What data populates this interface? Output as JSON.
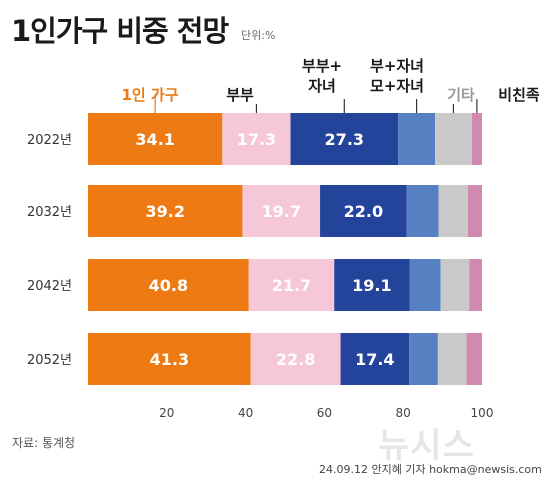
{
  "title": "1인가구 비중 전망",
  "unit": "단위:%",
  "source": "자료: 통계청",
  "watermark": "뉴시스",
  "credit": "24.09.12 안지혜 기자 hokma@newsis.com",
  "colors": {
    "one_person": "#EE7A14",
    "couple": "#F5C7D8",
    "couple_children": "#23449A",
    "parent_children": "#5680C2",
    "other": "#C9C9C9",
    "non_family": "#D289B1"
  },
  "category_labels": [
    {
      "key": "one_person",
      "text": "1인 가구",
      "lines": [
        "1인 가구"
      ],
      "color": "#EE7A14"
    },
    {
      "key": "couple",
      "text": "부부",
      "lines": [
        "부부"
      ],
      "color": "#1a1a1a"
    },
    {
      "key": "couple_children",
      "text": "부부+ 자녀",
      "lines": [
        "부부+",
        "자녀"
      ],
      "color": "#1a1a1a"
    },
    {
      "key": "parent_children",
      "text": "부+자녀 모+자녀",
      "lines": [
        "부+자녀",
        "모+자녀"
      ],
      "color": "#1a1a1a"
    },
    {
      "key": "other",
      "text": "기타",
      "lines": [
        "기타"
      ],
      "color": "#9a9a9a"
    },
    {
      "key": "non_family",
      "text": "비친족",
      "lines": [
        "비친족"
      ],
      "color": "#1a1a1a"
    }
  ],
  "chart_data": {
    "type": "bar",
    "orientation": "horizontal",
    "stacked": true,
    "categories": [
      "2022년",
      "2032년",
      "2042년",
      "2052년"
    ],
    "series": [
      {
        "name": "1인 가구",
        "values": [
          34.1,
          39.2,
          40.8,
          41.3
        ],
        "color": "#EE7A14",
        "labeled": true,
        "label_color": "#ffffff"
      },
      {
        "name": "부부",
        "values": [
          17.3,
          19.7,
          21.7,
          22.8
        ],
        "color": "#F5C7D8",
        "labeled": true,
        "label_color": "#ffffff"
      },
      {
        "name": "부부+ 자녀",
        "values": [
          27.3,
          22.0,
          19.1,
          17.4
        ],
        "color": "#23449A",
        "labeled": true,
        "label_color": "#ffffff"
      },
      {
        "name": "부+자녀 모+자녀",
        "values": [
          9.4,
          8.1,
          7.9,
          7.3
        ],
        "color": "#5680C2",
        "labeled": false
      },
      {
        "name": "기타",
        "values": [
          9.3,
          7.4,
          7.3,
          7.3
        ],
        "color": "#C9C9C9",
        "labeled": false
      },
      {
        "name": "비친족",
        "values": [
          2.6,
          3.6,
          3.2,
          3.9
        ],
        "color": "#D289B1",
        "labeled": false
      }
    ],
    "xticks": [
      20,
      40,
      60,
      80,
      100
    ],
    "xlim": [
      0,
      100
    ],
    "grid": false
  }
}
